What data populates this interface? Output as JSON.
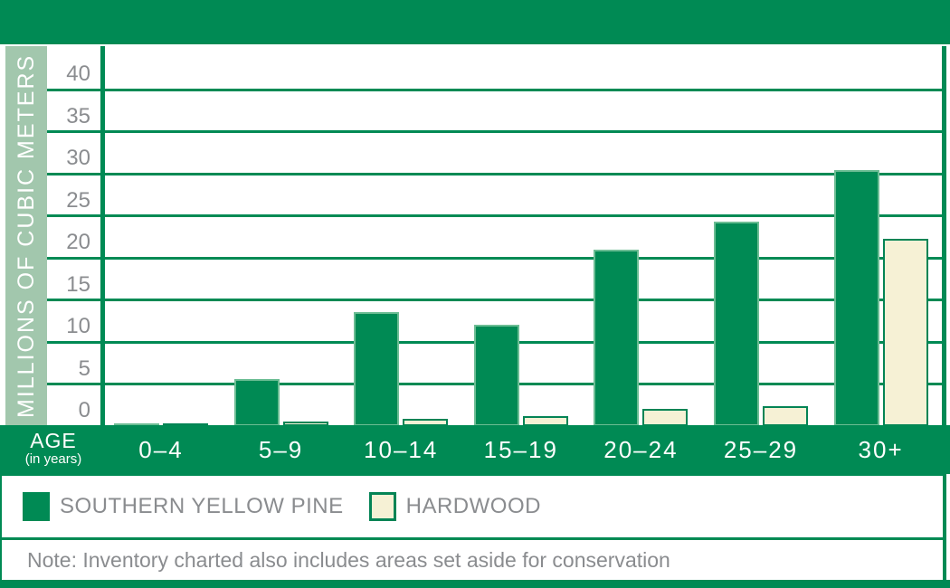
{
  "colors": {
    "green": "#008a54",
    "sage": "#a2c7ad",
    "cream": "#f6f1d5",
    "gray_text": "#8a8c8f",
    "pine_bar_stroke": "#6cbd94",
    "hardwood_bar_stroke": "#048455",
    "background": "#ffffff"
  },
  "y_axis": {
    "title": "MILLIONS OF CUBIC METERS"
  },
  "x_axis": {
    "label": "AGE",
    "sublabel": "(in years)"
  },
  "legend": {
    "items": [
      {
        "label": "SOUTHERN YELLOW PINE",
        "color": "#008a54"
      },
      {
        "label": "HARDWOOD",
        "color": "#f6f1d5"
      }
    ]
  },
  "note": {
    "text": "Note: Inventory charted also includes areas set aside for conservation"
  },
  "chart_data": {
    "type": "bar",
    "categories": [
      "0–4",
      "5–9",
      "10–14",
      "15–19",
      "20–24",
      "25–29",
      "30+"
    ],
    "series": [
      {
        "name": "SOUTHERN YELLOW PINE",
        "color": "#008a54",
        "values": [
          0.3,
          5.6,
          13.5,
          12,
          21,
          24.3,
          30.4
        ]
      },
      {
        "name": "HARDWOOD",
        "color": "#f6f1d5",
        "values": [
          0.3,
          0.5,
          0.9,
          1.2,
          2,
          2.4,
          22.3
        ]
      }
    ],
    "title": "",
    "xlabel": "AGE (in years)",
    "ylabel": "MILLIONS OF CUBIC METERS",
    "ylim": [
      0,
      42
    ],
    "yticks": [
      0,
      5,
      10,
      15,
      20,
      25,
      30,
      35,
      40
    ],
    "grid": true,
    "legend_position": "bottom",
    "annotations": [
      "Note: Inventory charted also includes areas set aside for conservation"
    ]
  }
}
